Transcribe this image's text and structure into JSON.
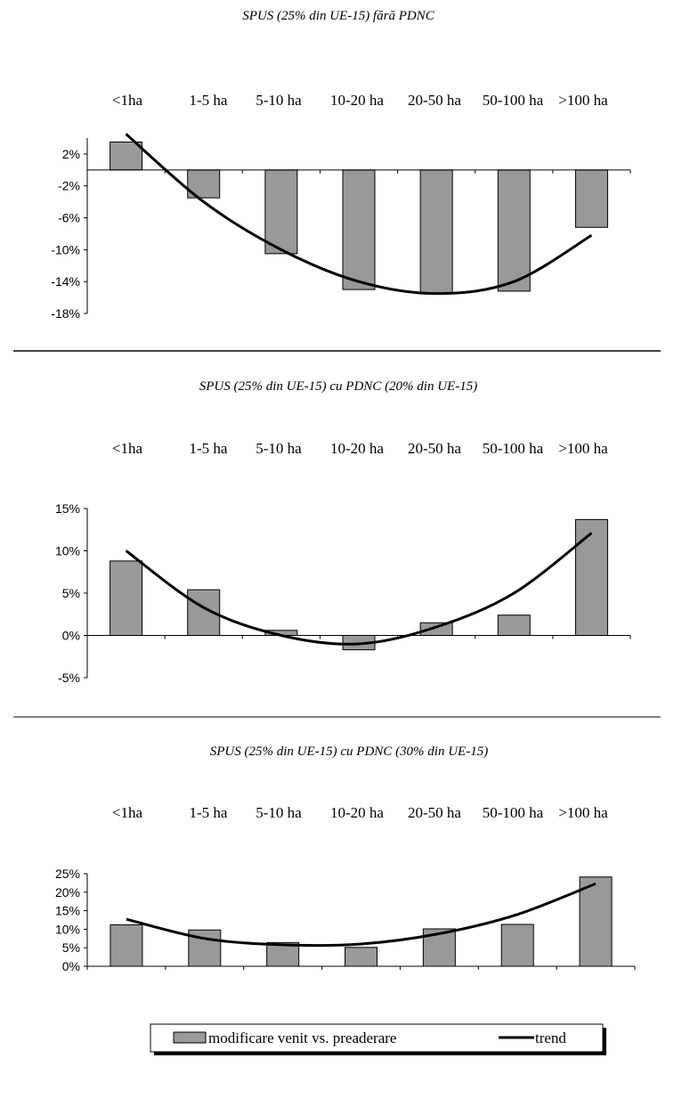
{
  "colors": {
    "bar": "#999999",
    "trend": "#000000",
    "axis": "#000000"
  },
  "chart_data": [
    {
      "type": "bar",
      "title": "SPUS (25% din UE-15) fără PDNC",
      "categories": [
        "<1ha",
        "1-5 ha",
        "5-10 ha",
        "10-20 ha",
        "20-50 ha",
        "50-100 ha",
        ">100 ha"
      ],
      "ylim": [
        -0.18,
        0.04
      ],
      "yticks": [
        0.02,
        -0.02,
        -0.06,
        -0.1,
        -0.14,
        -0.18
      ],
      "ytick_labels": [
        "2%",
        "-2%",
        "-6%",
        "-10%",
        "-14%",
        "-18%"
      ],
      "series": [
        {
          "name": "modificare venit vs. preaderare",
          "values": [
            0.035,
            -0.035,
            -0.105,
            -0.15,
            -0.155,
            -0.152,
            -0.072
          ]
        },
        {
          "name": "trend",
          "kind": "line",
          "values": [
            0.045,
            -0.04,
            -0.1,
            -0.14,
            -0.155,
            -0.14,
            -0.082
          ]
        }
      ]
    },
    {
      "type": "bar",
      "title": "SPUS (25% din UE-15) cu PDNC (20% din UE-15)",
      "categories": [
        "<1ha",
        "1-5 ha",
        "5-10 ha",
        "10-20 ha",
        "20-50 ha",
        "50-100 ha",
        ">100 ha"
      ],
      "ylim": [
        -0.05,
        0.15
      ],
      "yticks": [
        0.15,
        0.1,
        0.05,
        0.0,
        -0.05
      ],
      "ytick_labels": [
        "15%",
        "10%",
        "5%",
        "0%",
        "-5%"
      ],
      "series": [
        {
          "name": "modificare venit vs. preaderare",
          "values": [
            0.088,
            0.054,
            0.006,
            -0.017,
            0.015,
            0.024,
            0.137
          ]
        },
        {
          "name": "trend",
          "kind": "line",
          "values": [
            0.1,
            0.033,
            0.0,
            -0.01,
            0.01,
            0.05,
            0.121
          ]
        }
      ]
    },
    {
      "type": "bar",
      "title": "SPUS (25% din UE-15) cu PDNC (30% din UE-15)",
      "categories": [
        "<1ha",
        "1-5 ha",
        "5-10 ha",
        "10-20 ha",
        "20-50 ha",
        "50-100 ha",
        ">100 ha"
      ],
      "ylim": [
        0.0,
        0.25
      ],
      "yticks": [
        0.25,
        0.2,
        0.15,
        0.1,
        0.05,
        0.0
      ],
      "ytick_labels": [
        "25%",
        "20%",
        "15%",
        "10%",
        "5%",
        "0%"
      ],
      "series": [
        {
          "name": "modificare venit vs. preaderare",
          "values": [
            0.112,
            0.098,
            0.064,
            0.051,
            0.101,
            0.113,
            0.241
          ]
        },
        {
          "name": "trend",
          "kind": "line",
          "values": [
            0.127,
            0.075,
            0.058,
            0.06,
            0.088,
            0.14,
            0.223
          ]
        }
      ]
    }
  ],
  "legend": {
    "items": [
      {
        "label": "modificare venit vs. preaderare",
        "kind": "bar"
      },
      {
        "label": "trend",
        "kind": "line"
      }
    ]
  }
}
